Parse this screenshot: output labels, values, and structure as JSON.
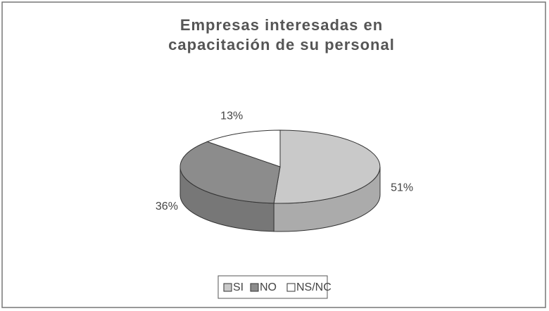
{
  "chart_data": {
    "type": "pie3d",
    "title": "Empresas interesadas en capacitación de su personal",
    "categories": [
      "SI",
      "NO",
      "NS/NC"
    ],
    "values": [
      51,
      36,
      13
    ],
    "value_labels": [
      "51%",
      "36%",
      "13%"
    ],
    "colors": [
      "#c9c9c9",
      "#8c8c8c",
      "#ffffff"
    ],
    "legend": "bottom"
  }
}
